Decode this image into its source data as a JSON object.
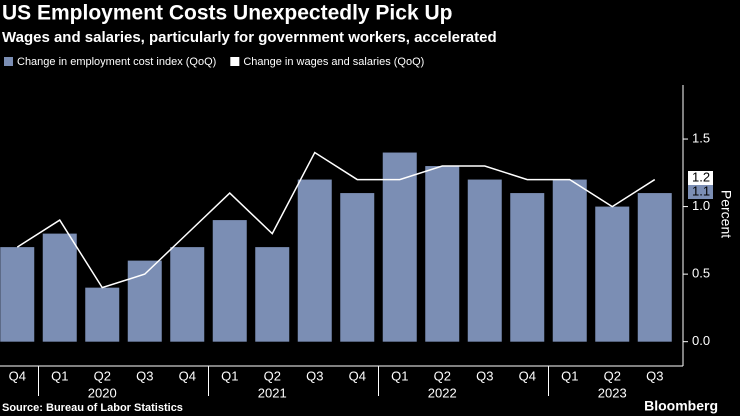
{
  "chart_data": {
    "type": "bar",
    "title": "US Employment Costs Unexpectedly Pick Up",
    "subtitle": "Wages and salaries, particularly for government workers, accelerated",
    "categories": [
      "Q4",
      "Q1",
      "Q2",
      "Q3",
      "Q4",
      "Q1",
      "Q2",
      "Q3",
      "Q4",
      "Q1",
      "Q2",
      "Q3",
      "Q4",
      "Q1",
      "Q2",
      "Q3"
    ],
    "years": [
      "2020",
      "2021",
      "2022",
      "2023"
    ],
    "series": [
      {
        "name": "Change in employment cost index (QoQ)",
        "type": "bar",
        "color": "#7b8eb4",
        "values": [
          0.7,
          0.8,
          0.4,
          0.6,
          0.7,
          0.9,
          0.7,
          1.2,
          1.1,
          1.4,
          1.3,
          1.2,
          1.1,
          1.2,
          1.0,
          1.1
        ]
      },
      {
        "name": "Change in wages and salaries (QoQ)",
        "type": "line",
        "color": "#ffffff",
        "values": [
          0.7,
          0.9,
          0.4,
          0.5,
          0.8,
          1.1,
          0.8,
          1.4,
          1.2,
          1.2,
          1.3,
          1.3,
          1.2,
          1.2,
          1.0,
          1.2
        ]
      }
    ],
    "ylabel": "Percent",
    "ylim": [
      -0.18,
      1.9
    ],
    "yticks": [
      {
        "value": 0,
        "label": "0.0"
      },
      0.5,
      {
        "value": 1,
        "label": "1.0"
      },
      1.5
    ],
    "source": "Source: Bureau of Labor Statistics",
    "brand": "Bloomberg"
  }
}
